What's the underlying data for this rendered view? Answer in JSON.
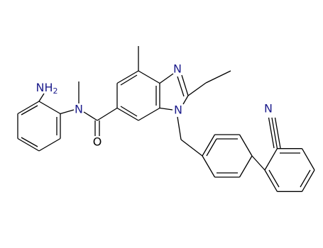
{
  "atoms": {
    "amine": {
      "text": "NH",
      "subscript": "2"
    },
    "amide_n": "N",
    "carbonyl_o": "O",
    "imidazole_n3": "N",
    "imidazole_n1": "N",
    "nitrile_n": "N"
  }
}
